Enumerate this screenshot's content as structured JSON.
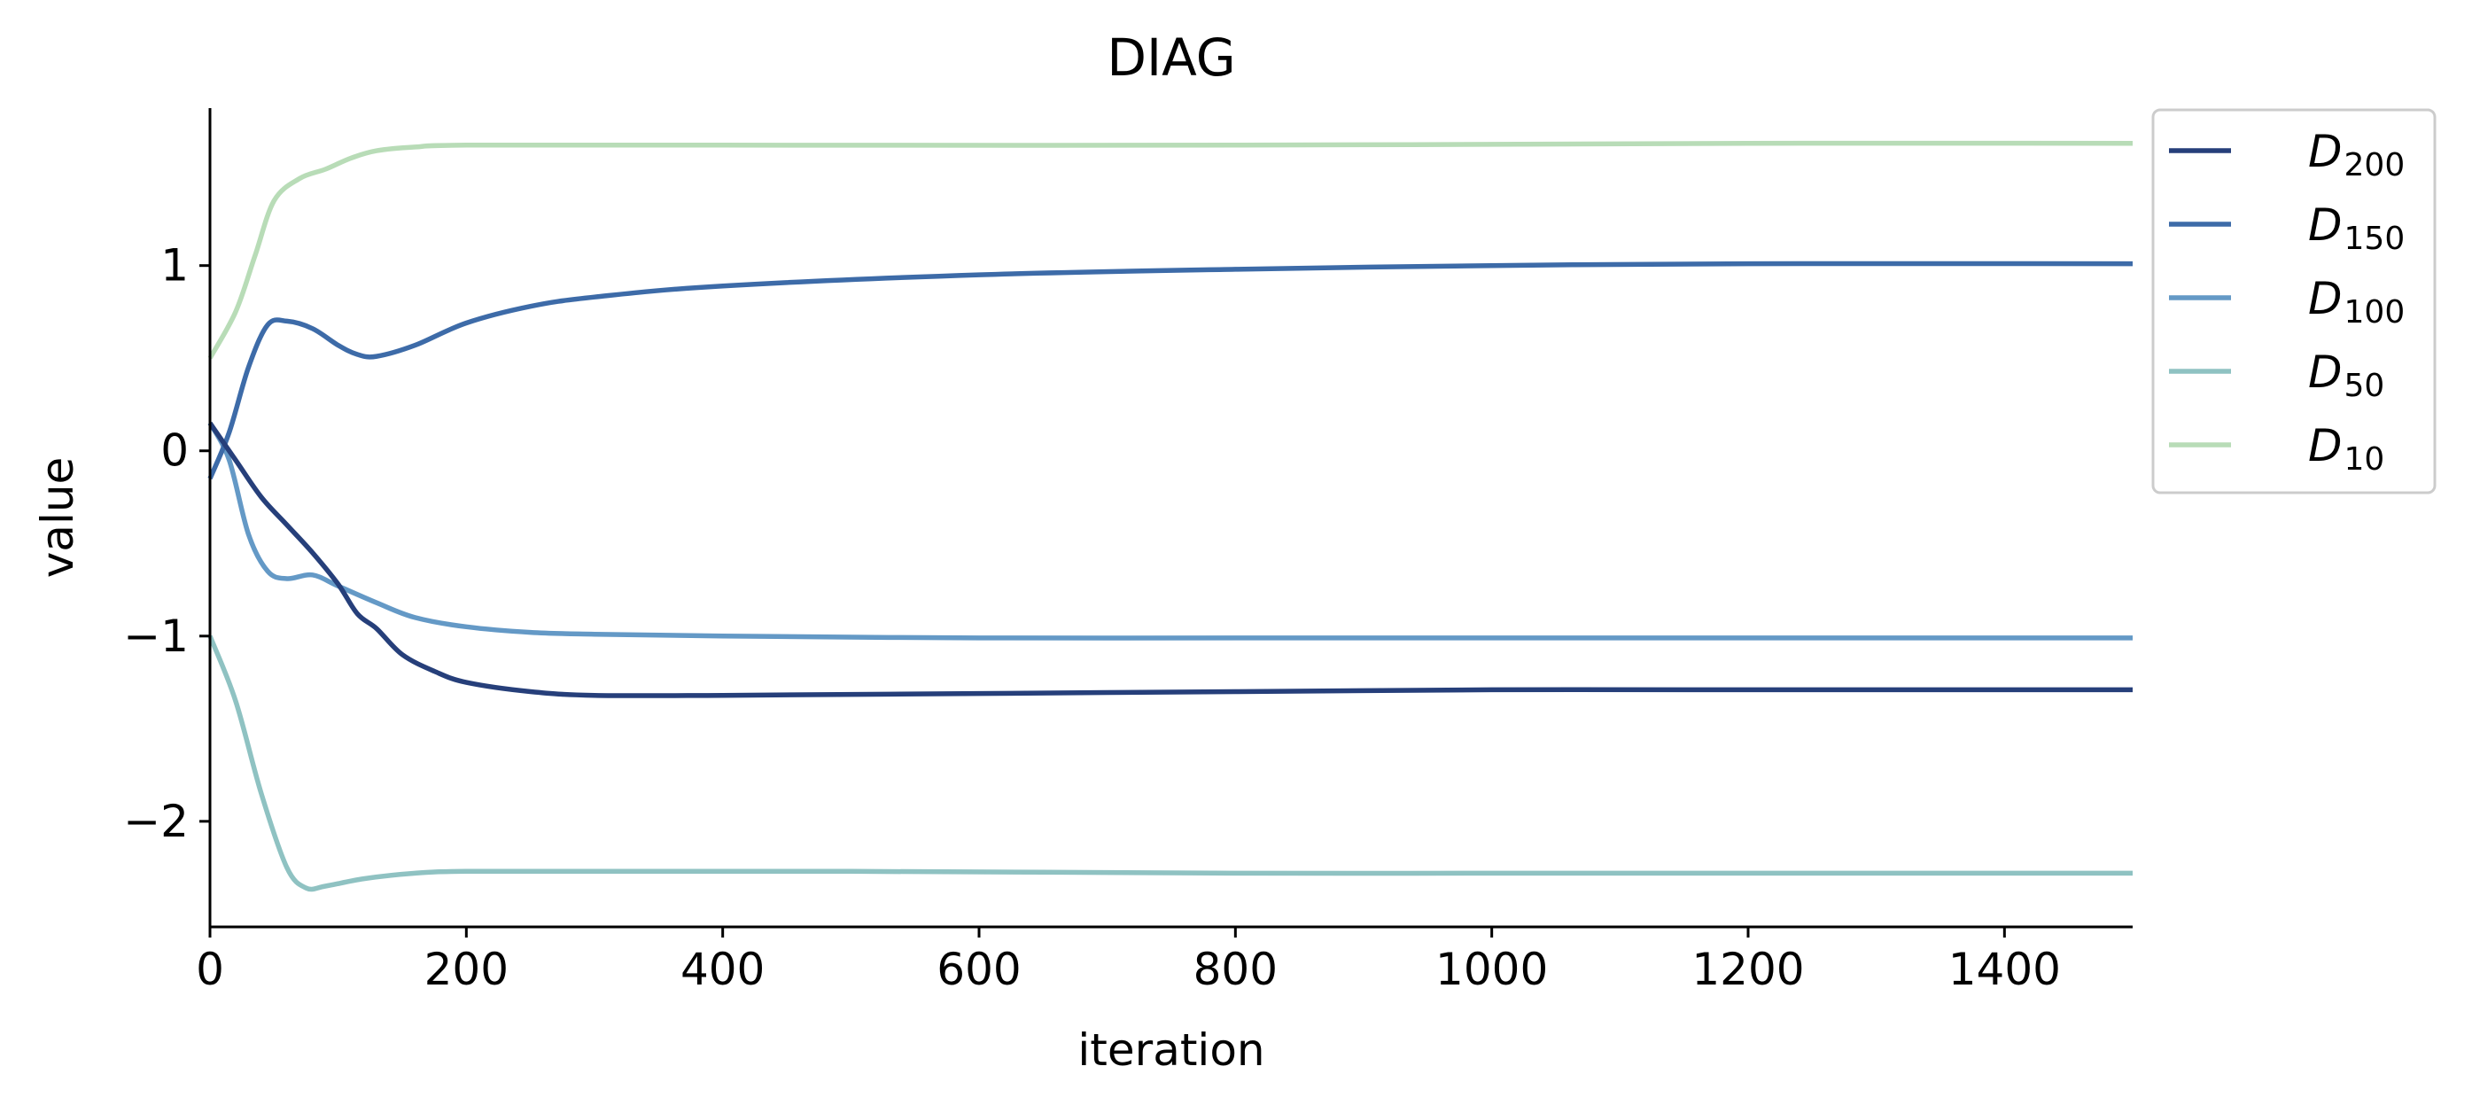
{
  "chart_data": {
    "type": "line",
    "title": "DIAG",
    "xlabel": "iteration",
    "ylabel": "value",
    "xlim": [
      0,
      1500
    ],
    "ylim": [
      -2.57,
      1.85
    ],
    "xticks": [
      0,
      200,
      400,
      600,
      800,
      1000,
      1200,
      1400
    ],
    "xtick_labels": [
      "0",
      "200",
      "400",
      "600",
      "800",
      "1000",
      "1200",
      "1400"
    ],
    "yticks": [
      -2,
      -1,
      0,
      1
    ],
    "ytick_labels": [
      "−2",
      "−1",
      "0",
      "1"
    ],
    "grid": false,
    "legend_position": "outside-top-right",
    "series": [
      {
        "name": "D",
        "subscript": "200",
        "color": "#263f7a",
        "points": [
          [
            0,
            0.15
          ],
          [
            20,
            -0.05
          ],
          [
            40,
            -0.25
          ],
          [
            60,
            -0.4
          ],
          [
            80,
            -0.55
          ],
          [
            100,
            -0.72
          ],
          [
            115,
            -0.88
          ],
          [
            130,
            -0.96
          ],
          [
            150,
            -1.1
          ],
          [
            175,
            -1.19
          ],
          [
            200,
            -1.25
          ],
          [
            250,
            -1.3
          ],
          [
            300,
            -1.32
          ],
          [
            400,
            -1.32
          ],
          [
            600,
            -1.31
          ],
          [
            800,
            -1.3
          ],
          [
            1000,
            -1.29
          ],
          [
            1200,
            -1.29
          ],
          [
            1500,
            -1.29
          ]
        ]
      },
      {
        "name": "D",
        "subscript": "150",
        "color": "#3d6ba8",
        "points": [
          [
            0,
            -0.15
          ],
          [
            15,
            0.1
          ],
          [
            30,
            0.45
          ],
          [
            45,
            0.68
          ],
          [
            60,
            0.7
          ],
          [
            80,
            0.66
          ],
          [
            100,
            0.57
          ],
          [
            115,
            0.52
          ],
          [
            130,
            0.51
          ],
          [
            160,
            0.57
          ],
          [
            200,
            0.69
          ],
          [
            250,
            0.78
          ],
          [
            300,
            0.83
          ],
          [
            400,
            0.89
          ],
          [
            600,
            0.95
          ],
          [
            800,
            0.98
          ],
          [
            1000,
            1.0
          ],
          [
            1200,
            1.01
          ],
          [
            1500,
            1.01
          ]
        ]
      },
      {
        "name": "D",
        "subscript": "100",
        "color": "#6499c6",
        "points": [
          [
            0,
            0.15
          ],
          [
            15,
            -0.05
          ],
          [
            30,
            -0.45
          ],
          [
            45,
            -0.65
          ],
          [
            60,
            -0.69
          ],
          [
            80,
            -0.67
          ],
          [
            100,
            -0.73
          ],
          [
            130,
            -0.82
          ],
          [
            160,
            -0.9
          ],
          [
            200,
            -0.95
          ],
          [
            250,
            -0.98
          ],
          [
            300,
            -0.99
          ],
          [
            400,
            -1.0
          ],
          [
            600,
            -1.01
          ],
          [
            800,
            -1.01
          ],
          [
            1000,
            -1.01
          ],
          [
            1200,
            -1.01
          ],
          [
            1500,
            -1.01
          ]
        ]
      },
      {
        "name": "D",
        "subscript": "50",
        "color": "#8fc2c2",
        "points": [
          [
            0,
            -1.0
          ],
          [
            20,
            -1.35
          ],
          [
            40,
            -1.85
          ],
          [
            60,
            -2.25
          ],
          [
            75,
            -2.36
          ],
          [
            90,
            -2.35
          ],
          [
            120,
            -2.31
          ],
          [
            160,
            -2.28
          ],
          [
            200,
            -2.27
          ],
          [
            300,
            -2.27
          ],
          [
            500,
            -2.27
          ],
          [
            800,
            -2.28
          ],
          [
            1000,
            -2.28
          ],
          [
            1200,
            -2.28
          ],
          [
            1500,
            -2.28
          ]
        ]
      },
      {
        "name": "D",
        "subscript": "10",
        "color": "#b8dcb7",
        "points": [
          [
            0,
            0.5
          ],
          [
            20,
            0.75
          ],
          [
            35,
            1.05
          ],
          [
            50,
            1.35
          ],
          [
            70,
            1.47
          ],
          [
            90,
            1.52
          ],
          [
            110,
            1.58
          ],
          [
            130,
            1.62
          ],
          [
            160,
            1.64
          ],
          [
            200,
            1.65
          ],
          [
            400,
            1.65
          ],
          [
            800,
            1.65
          ],
          [
            1200,
            1.66
          ],
          [
            1500,
            1.66
          ]
        ]
      }
    ]
  }
}
